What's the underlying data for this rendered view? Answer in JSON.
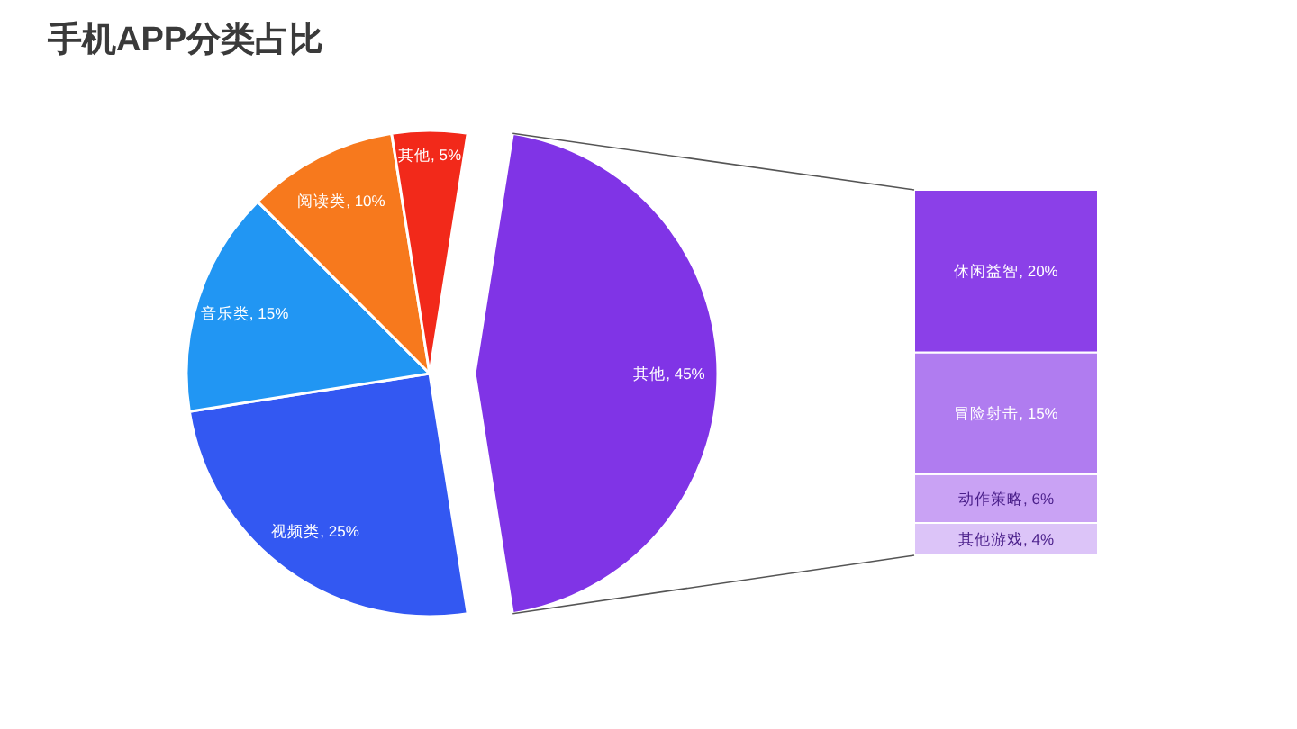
{
  "chart_data": [
    {
      "type": "pie",
      "title": "手机APP分类占比",
      "categories": [
        "其他",
        "视频类",
        "音乐类",
        "阅读类",
        "其他"
      ],
      "values": [
        45,
        25,
        15,
        10,
        5
      ],
      "value_labels": [
        "45%",
        "25%",
        "15%",
        "10%",
        "5%"
      ],
      "colors": [
        "#8034e6",
        "#3358f2",
        "#2196f3",
        "#f7791d",
        "#f2291a"
      ]
    },
    {
      "type": "bar",
      "stacked": true,
      "categories": [
        null
      ],
      "series": [
        {
          "color": "#dcc4f8",
          "values": [
            4
          ],
          "value_labels": [
            "其他游戏, 4%"
          ]
        },
        {
          "color": "#c9a2f4",
          "values": [
            6
          ],
          "value_labels": [
            "动作策略, 6%"
          ]
        },
        {
          "color": "#b07cf0",
          "values": [
            15
          ],
          "value_labels": [
            "冒险射击, 15%"
          ]
        },
        {
          "color": "#8b40e8",
          "values": [
            20
          ],
          "value_labels": [
            "休闲益智, 20%"
          ]
        }
      ]
    }
  ]
}
